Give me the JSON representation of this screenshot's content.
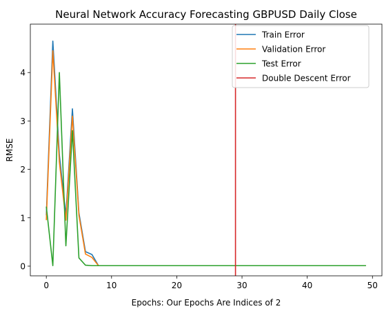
{
  "chart_data": {
    "type": "line",
    "title": "Neural Network Accuracy Forecasting GBPUSD Daily Close",
    "xlabel": "Epochs: Our Epochs Are Indices of 2",
    "ylabel": "RMSE",
    "xlim": [
      -2.45,
      51.45
    ],
    "ylim": [
      -0.2,
      5.0
    ],
    "xticks": [
      0,
      10,
      20,
      30,
      40,
      50
    ],
    "yticks": [
      0,
      1,
      2,
      3,
      4
    ],
    "grid": false,
    "legend_position": "upper-right",
    "x": [
      0,
      1,
      2,
      3,
      4,
      5,
      6,
      7,
      8,
      9,
      10,
      11,
      12,
      13,
      14,
      15,
      16,
      17,
      18,
      19,
      20,
      21,
      22,
      23,
      24,
      25,
      26,
      27,
      28,
      29,
      30,
      31,
      32,
      33,
      34,
      35,
      36,
      37,
      38,
      39,
      40,
      41,
      42,
      43,
      44,
      45,
      46,
      47,
      48,
      49
    ],
    "series": [
      {
        "name": "Train Error",
        "color": "#1f77b4",
        "values": [
          1.05,
          4.65,
          2.3,
          1.05,
          3.25,
          1.1,
          0.3,
          0.24,
          0.01,
          0.01,
          0.01,
          0.01,
          0.01,
          0.01,
          0.01,
          0.01,
          0.01,
          0.01,
          0.01,
          0.01,
          0.01,
          0.01,
          0.01,
          0.01,
          0.01,
          0.01,
          0.01,
          0.01,
          0.01,
          0.01,
          0.01,
          0.01,
          0.01,
          0.01,
          0.01,
          0.01,
          0.01,
          0.01,
          0.01,
          0.01,
          0.01,
          0.01,
          0.01,
          0.01,
          0.01,
          0.01,
          0.01,
          0.01,
          0.01,
          0.01
        ]
      },
      {
        "name": "Validation Error",
        "color": "#ff7f0e",
        "values": [
          0.95,
          4.45,
          2.15,
          0.95,
          3.1,
          1.05,
          0.25,
          0.18,
          0.01,
          0.01,
          0.01,
          0.01,
          0.01,
          0.01,
          0.01,
          0.01,
          0.01,
          0.01,
          0.01,
          0.01,
          0.01,
          0.01,
          0.01,
          0.01,
          0.01,
          0.01,
          0.01,
          0.01,
          0.01,
          0.01,
          0.01,
          0.01,
          0.01,
          0.01,
          0.01,
          0.01,
          0.01,
          0.01,
          0.01,
          0.01,
          0.01,
          0.01,
          0.01,
          0.01,
          0.01,
          0.01,
          0.01,
          0.01,
          0.01,
          0.01
        ]
      },
      {
        "name": "Test Error",
        "color": "#2ca02c",
        "values": [
          1.23,
          0.01,
          4.0,
          0.42,
          2.8,
          0.17,
          0.02,
          0.01,
          0.01,
          0.01,
          0.01,
          0.01,
          0.01,
          0.01,
          0.01,
          0.01,
          0.01,
          0.01,
          0.01,
          0.01,
          0.01,
          0.01,
          0.01,
          0.01,
          0.01,
          0.01,
          0.01,
          0.01,
          0.01,
          0.01,
          0.01,
          0.01,
          0.01,
          0.01,
          0.01,
          0.01,
          0.01,
          0.01,
          0.01,
          0.01,
          0.01,
          0.01,
          0.01,
          0.01,
          0.01,
          0.01,
          0.01,
          0.01,
          0.01,
          0.01
        ]
      }
    ],
    "vline": {
      "name": "Double Descent Error",
      "x": 29,
      "color": "#d62728"
    }
  }
}
